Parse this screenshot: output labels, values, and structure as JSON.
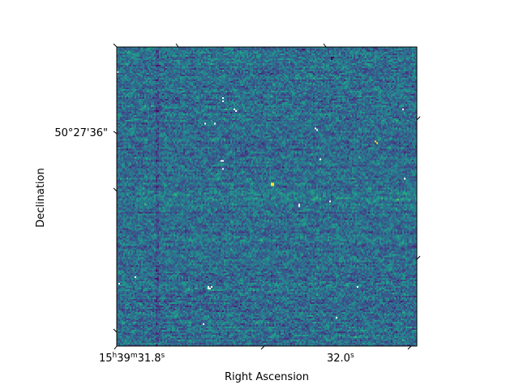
{
  "chart_data": {
    "type": "heatmap",
    "colormap": "viridis",
    "xlabel": "Right Ascension",
    "ylabel": "Declination",
    "x_ticks": [
      {
        "h": "15",
        "m": "39",
        "s": "31.8",
        "label": "15h39m31.8s"
      },
      {
        "s": "32.0",
        "label": "32.0s"
      }
    ],
    "y_ticks": [
      {
        "label": "50°27'36\""
      }
    ],
    "grid": false,
    "noise_level": 0.45,
    "bright_source_level": 1.0,
    "masked_value_color": "#ffffff"
  },
  "colors": {
    "axes_edge": "#000000",
    "tick_color": "#000000",
    "background": "#ffffff"
  }
}
